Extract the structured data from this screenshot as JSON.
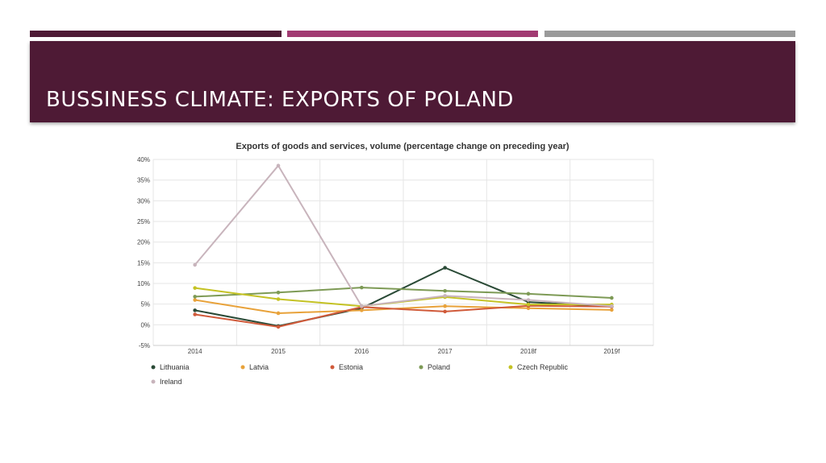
{
  "slide": {
    "title": "BUSSINESS CLIMATE: EXPORTS OF POLAND",
    "colors": {
      "banner": "#4e1a35",
      "strip1": "#4e1a35",
      "strip2": "#a13a72",
      "strip3": "#9a9a9a"
    }
  },
  "chart_data": {
    "type": "line",
    "title": "Exports of goods and services, volume (percentage change on preceding year)",
    "categories": [
      "2014",
      "2015",
      "2016",
      "2017",
      "2018f",
      "2019f"
    ],
    "ylim": [
      -5,
      40
    ],
    "yticks": [
      "40%",
      "35%",
      "30%",
      "25%",
      "20%",
      "15%",
      "10%",
      "5%",
      "0%",
      "-5%"
    ],
    "grid": true,
    "legend_position": "bottom",
    "series": [
      {
        "name": "Lithuania",
        "color": "#2a4a36",
        "values": [
          3.5,
          -0.3,
          4.0,
          13.8,
          5.5,
          4.4
        ]
      },
      {
        "name": "Latvia",
        "color": "#e8a23a",
        "values": [
          6.0,
          2.8,
          3.5,
          4.5,
          4.0,
          3.6
        ]
      },
      {
        "name": "Estonia",
        "color": "#d05a3a",
        "values": [
          2.5,
          -0.5,
          4.3,
          3.2,
          4.6,
          4.4
        ]
      },
      {
        "name": "Poland",
        "color": "#7d9a55",
        "values": [
          6.8,
          7.8,
          9.0,
          8.2,
          7.5,
          6.5
        ]
      },
      {
        "name": "Czech Republic",
        "color": "#c4c224",
        "values": [
          8.9,
          6.2,
          4.5,
          6.7,
          4.9,
          4.9
        ]
      },
      {
        "name": "Ireland",
        "color": "#c8b4bc",
        "values": [
          14.5,
          38.5,
          4.5,
          7.0,
          6.0,
          4.5
        ]
      }
    ]
  }
}
